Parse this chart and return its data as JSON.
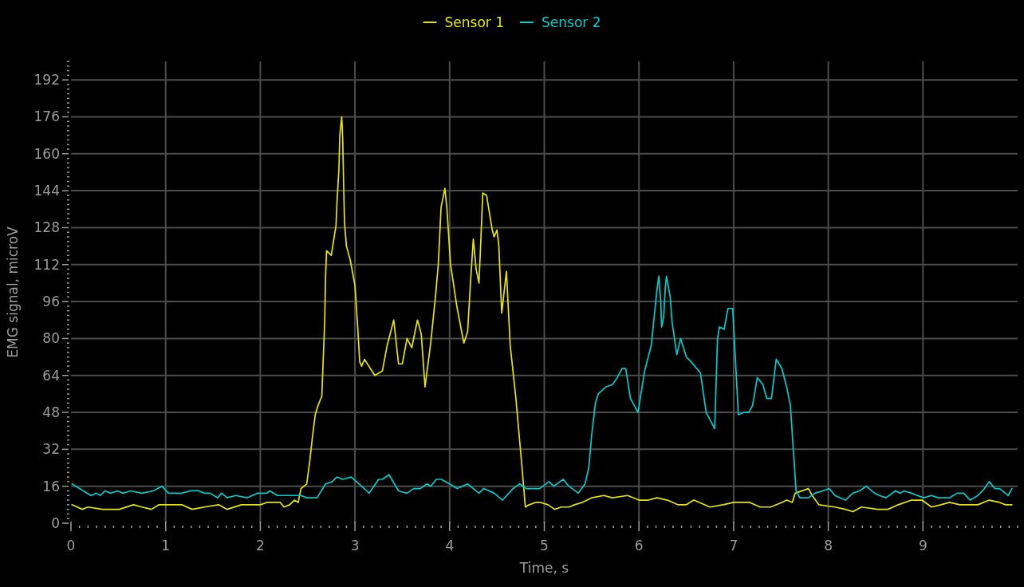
{
  "chart_data": {
    "type": "line",
    "xlabel": "Time, s",
    "ylabel": "EMG signal, microV",
    "legend": "top",
    "grid": true,
    "xlim": [
      0,
      10
    ],
    "ylim": [
      0,
      200
    ],
    "xticks": [
      0,
      {
        "value": 0.09,
        "label": null
      },
      {
        "value": 0.18,
        "label": null
      },
      {
        "value": 0.27,
        "label": null
      },
      {
        "value": 0.36,
        "label": null
      },
      {
        "value": 0.45,
        "label": null
      },
      {
        "value": 0.55,
        "label": null
      },
      {
        "value": 0.64,
        "label": null
      },
      {
        "value": 0.73,
        "label": null
      },
      {
        "value": 0.82,
        "label": null
      },
      {
        "value": 0.91,
        "label": null
      },
      1,
      {
        "value": 1.09,
        "label": null
      },
      {
        "value": 1.18,
        "label": null
      },
      {
        "value": 1.27,
        "label": null
      },
      {
        "value": 1.36,
        "label": null
      },
      {
        "value": 1.45,
        "label": null
      },
      {
        "value": 1.55,
        "label": null
      },
      {
        "value": 1.64,
        "label": null
      },
      {
        "value": 1.73,
        "label": null
      },
      {
        "value": 1.82,
        "label": null
      },
      {
        "value": 1.91,
        "label": null
      },
      2,
      {
        "value": 2.09,
        "label": null
      },
      {
        "value": 2.18,
        "label": null
      },
      {
        "value": 2.27,
        "label": null
      },
      {
        "value": 2.36,
        "label": null
      },
      {
        "value": 2.45,
        "label": null
      },
      {
        "value": 2.55,
        "label": null
      },
      {
        "value": 2.64,
        "label": null
      },
      {
        "value": 2.73,
        "label": null
      },
      {
        "value": 2.82,
        "label": null
      },
      {
        "value": 2.91,
        "label": null
      },
      3,
      {
        "value": 3.09,
        "label": null
      },
      {
        "value": 3.18,
        "label": null
      },
      {
        "value": 3.27,
        "label": null
      },
      {
        "value": 3.36,
        "label": null
      },
      {
        "value": 3.45,
        "label": null
      },
      {
        "value": 3.55,
        "label": null
      },
      {
        "value": 3.64,
        "label": null
      },
      {
        "value": 3.73,
        "label": null
      },
      {
        "value": 3.82,
        "label": null
      },
      {
        "value": 3.91,
        "label": null
      },
      4,
      {
        "value": 4.09,
        "label": null
      },
      {
        "value": 4.18,
        "label": null
      },
      {
        "value": 4.27,
        "label": null
      },
      {
        "value": 4.36,
        "label": null
      },
      {
        "value": 4.45,
        "label": null
      },
      {
        "value": 4.55,
        "label": null
      },
      {
        "value": 4.64,
        "label": null
      },
      {
        "value": 4.73,
        "label": null
      },
      {
        "value": 4.82,
        "label": null
      },
      {
        "value": 4.91,
        "label": null
      },
      5,
      {
        "value": 5.09,
        "label": null
      },
      {
        "value": 5.18,
        "label": null
      },
      {
        "value": 5.27,
        "label": null
      },
      {
        "value": 5.36,
        "label": null
      },
      {
        "value": 5.45,
        "label": null
      },
      {
        "value": 5.55,
        "label": null
      },
      {
        "value": 5.64,
        "label": null
      },
      {
        "value": 5.73,
        "label": null
      },
      {
        "value": 5.82,
        "label": null
      },
      {
        "value": 5.91,
        "label": null
      },
      6,
      {
        "value": 6.09,
        "label": null
      },
      {
        "value": 6.18,
        "label": null
      },
      {
        "value": 6.27,
        "label": null
      },
      {
        "value": 6.36,
        "label": null
      },
      {
        "value": 6.45,
        "label": null
      },
      {
        "value": 6.55,
        "label": null
      },
      {
        "value": 6.64,
        "label": null
      },
      {
        "value": 6.73,
        "label": null
      },
      {
        "value": 6.82,
        "label": null
      },
      {
        "value": 6.91,
        "label": null
      },
      7,
      {
        "value": 7.09,
        "label": null
      },
      {
        "value": 7.18,
        "label": null
      },
      {
        "value": 7.27,
        "label": null
      },
      {
        "value": 7.36,
        "label": null
      },
      {
        "value": 7.45,
        "label": null
      },
      {
        "value": 7.55,
        "label": null
      },
      {
        "value": 7.64,
        "label": null
      },
      {
        "value": 7.73,
        "label": null
      },
      {
        "value": 7.82,
        "label": null
      },
      {
        "value": 7.91,
        "label": null
      },
      8,
      {
        "value": 8.09,
        "label": null
      },
      {
        "value": 8.18,
        "label": null
      },
      {
        "value": 8.27,
        "label": null
      },
      {
        "value": 8.36,
        "label": null
      },
      {
        "value": 8.45,
        "label": null
      },
      {
        "value": 8.55,
        "label": null
      },
      {
        "value": 8.64,
        "label": null
      },
      {
        "value": 8.73,
        "label": null
      },
      {
        "value": 8.82,
        "label": null
      },
      {
        "value": 8.91,
        "label": null
      },
      9,
      {
        "value": 9.09,
        "label": null
      },
      {
        "value": 9.18,
        "label": null
      },
      {
        "value": 9.27,
        "label": null
      },
      {
        "value": 9.36,
        "label": null
      },
      {
        "value": 9.45,
        "label": null
      },
      {
        "value": 9.55,
        "label": null
      },
      {
        "value": 9.64,
        "label": null
      },
      {
        "value": 9.73,
        "label": null
      },
      {
        "value": 9.82,
        "label": null
      },
      {
        "value": 9.91,
        "label": null
      },
      {
        "value": 10,
        "label": null
      }
    ],
    "yticks": [
      0,
      {
        "value": 2,
        "label": null
      },
      {
        "value": 4,
        "label": null
      },
      {
        "value": 6,
        "label": null
      },
      {
        "value": 8,
        "label": null
      },
      {
        "value": 10,
        "label": null
      },
      {
        "value": 12,
        "label": null
      },
      {
        "value": 14,
        "label": null
      },
      16,
      {
        "value": 18,
        "label": null
      },
      {
        "value": 20,
        "label": null
      },
      {
        "value": 22,
        "label": null
      },
      {
        "value": 24,
        "label": null
      },
      {
        "value": 26,
        "label": null
      },
      {
        "value": 28,
        "label": null
      },
      {
        "value": 30,
        "label": null
      },
      32,
      {
        "value": 34,
        "label": null
      },
      {
        "value": 36,
        "label": null
      },
      {
        "value": 38,
        "label": null
      },
      {
        "value": 40,
        "label": null
      },
      {
        "value": 42,
        "label": null
      },
      {
        "value": 44,
        "label": null
      },
      {
        "value": 46,
        "label": null
      },
      48,
      {
        "value": 50,
        "label": null
      },
      {
        "value": 52,
        "label": null
      },
      {
        "value": 54,
        "label": null
      },
      {
        "value": 56,
        "label": null
      },
      {
        "value": 58,
        "label": null
      },
      {
        "value": 60,
        "label": null
      },
      {
        "value": 62,
        "label": null
      },
      64,
      {
        "value": 66,
        "label": null
      },
      {
        "value": 68,
        "label": null
      },
      {
        "value": 70,
        "label": null
      },
      {
        "value": 72,
        "label": null
      },
      {
        "value": 74,
        "label": null
      },
      {
        "value": 76,
        "label": null
      },
      {
        "value": 78,
        "label": null
      },
      80,
      {
        "value": 82,
        "label": null
      },
      {
        "value": 84,
        "label": null
      },
      {
        "value": 86,
        "label": null
      },
      {
        "value": 88,
        "label": null
      },
      {
        "value": 90,
        "label": null
      },
      {
        "value": 92,
        "label": null
      },
      {
        "value": 94,
        "label": null
      },
      96,
      {
        "value": 98,
        "label": null
      },
      {
        "value": 100,
        "label": null
      },
      {
        "value": 102,
        "label": null
      },
      {
        "value": 104,
        "label": null
      },
      {
        "value": 106,
        "label": null
      },
      {
        "value": 108,
        "label": null
      },
      {
        "value": 110,
        "label": null
      },
      112,
      {
        "value": 114,
        "label": null
      },
      {
        "value": 116,
        "label": null
      },
      {
        "value": 118,
        "label": null
      },
      {
        "value": 120,
        "label": null
      },
      {
        "value": 122,
        "label": null
      },
      {
        "value": 124,
        "label": null
      },
      {
        "value": 126,
        "label": null
      },
      128,
      {
        "value": 130,
        "label": null
      },
      {
        "value": 132,
        "label": null
      },
      {
        "value": 134,
        "label": null
      },
      {
        "value": 136,
        "label": null
      },
      {
        "value": 138,
        "label": null
      },
      {
        "value": 140,
        "label": null
      },
      {
        "value": 142,
        "label": null
      },
      144,
      {
        "value": 146,
        "label": null
      },
      {
        "value": 148,
        "label": null
      },
      {
        "value": 150,
        "label": null
      },
      {
        "value": 152,
        "label": null
      },
      {
        "value": 154,
        "label": null
      },
      {
        "value": 156,
        "label": null
      },
      {
        "value": 158,
        "label": null
      },
      160,
      {
        "value": 162,
        "label": null
      },
      {
        "value": 164,
        "label": null
      },
      {
        "value": 166,
        "label": null
      },
      {
        "value": 168,
        "label": null
      },
      {
        "value": 170,
        "label": null
      },
      {
        "value": 172,
        "label": null
      },
      {
        "value": 174,
        "label": null
      },
      176,
      {
        "value": 178,
        "label": null
      },
      {
        "value": 180,
        "label": null
      },
      {
        "value": 182,
        "label": null
      },
      {
        "value": 184,
        "label": null
      },
      {
        "value": 186,
        "label": null
      },
      {
        "value": 188,
        "label": null
      },
      {
        "value": 190,
        "label": null
      },
      192,
      {
        "value": 194,
        "label": null
      },
      {
        "value": 196,
        "label": null
      },
      {
        "value": 198,
        "label": null
      },
      {
        "value": 200,
        "label": null
      }
    ],
    "series": [
      {
        "name": "Sensor 1",
        "color": "#e6e600",
        "x": [
          0.01,
          0.12,
          0.18,
          0.33,
          0.51,
          0.66,
          0.75,
          0.85,
          0.93,
          1.02,
          1.17,
          1.28,
          1.41,
          1.56,
          1.65,
          1.8,
          2.0,
          2.07,
          2.16,
          2.21,
          2.25,
          2.31,
          2.36,
          2.4,
          2.43,
          2.49,
          2.52,
          2.55,
          2.58,
          2.61,
          2.65,
          2.66,
          2.68,
          2.69,
          2.7,
          2.75,
          2.78,
          2.8,
          2.81,
          2.83,
          2.84,
          2.86,
          2.87,
          2.88,
          2.89,
          2.91,
          2.95,
          3.0,
          3.03,
          3.05,
          3.07,
          3.1,
          3.21,
          3.29,
          3.34,
          3.41,
          3.46,
          3.5,
          3.55,
          3.6,
          3.66,
          3.7,
          3.74,
          3.8,
          3.85,
          3.88,
          3.91,
          3.95,
          3.97,
          4.01,
          4.08,
          4.15,
          4.19,
          4.22,
          4.25,
          4.28,
          4.31,
          4.33,
          4.35,
          4.39,
          4.45,
          4.47,
          4.5,
          4.52,
          4.55,
          4.6,
          4.61,
          4.64,
          4.7,
          4.75,
          4.8,
          4.84,
          4.91,
          4.96,
          5.04,
          5.11,
          5.18,
          5.26,
          5.32,
          5.4,
          5.5,
          5.63,
          5.72,
          5.88,
          6.0,
          6.1,
          6.19,
          6.3,
          6.41,
          6.5,
          6.58,
          6.75,
          6.89,
          7.0,
          7.17,
          7.28,
          7.39,
          7.51,
          7.56,
          7.62,
          7.65,
          7.79,
          7.83,
          7.9,
          8.07,
          8.18,
          8.26,
          8.35,
          8.52,
          8.63,
          8.74,
          8.88,
          8.99,
          9.09,
          9.19,
          9.28,
          9.39,
          9.58,
          9.7,
          9.81,
          9.87,
          9.94
        ],
        "values": [
          8,
          6,
          7,
          6,
          6,
          8,
          7,
          6,
          8,
          8,
          8,
          6,
          7,
          8,
          6,
          8,
          8,
          9,
          9,
          9,
          7,
          8,
          10,
          9,
          15,
          17,
          26,
          37,
          47,
          51,
          55,
          66,
          87,
          108,
          118,
          116,
          124,
          129,
          139,
          153,
          168,
          176,
          167,
          147,
          130,
          120,
          114,
          103,
          84,
          70,
          68,
          71,
          64,
          66,
          77,
          88,
          69,
          69,
          80,
          76,
          88,
          82,
          59,
          78,
          98,
          112,
          137,
          145,
          137,
          112,
          93,
          78,
          83,
          104,
          123,
          110,
          104,
          123,
          143,
          142,
          127,
          124,
          127,
          120,
          91,
          109,
          101,
          77,
          54,
          31,
          7,
          8,
          9,
          9,
          8,
          6,
          7,
          7,
          8,
          9,
          11,
          12,
          11,
          12,
          10,
          10,
          11,
          10,
          8,
          8,
          10,
          7,
          8,
          9,
          9,
          7,
          7,
          9,
          10,
          9,
          13,
          15,
          12,
          8,
          7,
          6,
          5,
          7,
          6,
          6,
          8,
          10,
          10,
          7,
          8,
          9,
          8,
          8,
          10,
          9,
          8,
          8
        ]
      },
      {
        "name": "Sensor 2",
        "color": "#00cccc",
        "x": [
          0.01,
          0.09,
          0.21,
          0.27,
          0.31,
          0.36,
          0.42,
          0.49,
          0.55,
          0.63,
          0.75,
          0.87,
          0.96,
          1.03,
          1.17,
          1.26,
          1.35,
          1.41,
          1.47,
          1.55,
          1.59,
          1.65,
          1.74,
          1.86,
          1.97,
          2.07,
          2.1,
          2.18,
          2.25,
          2.3,
          2.34,
          2.43,
          2.49,
          2.6,
          2.69,
          2.76,
          2.81,
          2.87,
          2.96,
          3.07,
          3.15,
          3.25,
          3.29,
          3.36,
          3.46,
          3.55,
          3.62,
          3.69,
          3.76,
          3.8,
          3.86,
          3.91,
          4.0,
          4.08,
          4.19,
          4.31,
          4.36,
          4.47,
          4.56,
          4.67,
          4.74,
          4.81,
          4.95,
          5.05,
          5.1,
          5.2,
          5.26,
          5.36,
          5.43,
          5.47,
          5.5,
          5.54,
          5.57,
          5.65,
          5.72,
          5.77,
          5.82,
          5.86,
          5.91,
          5.99,
          6.06,
          6.13,
          6.16,
          6.19,
          6.21,
          6.23,
          6.24,
          6.26,
          6.28,
          6.29,
          6.33,
          6.35,
          6.4,
          6.44,
          6.5,
          6.55,
          6.65,
          6.71,
          6.8,
          6.83,
          6.85,
          6.9,
          6.94,
          6.99,
          7.02,
          7.05,
          7.11,
          7.16,
          7.2,
          7.25,
          7.31,
          7.35,
          7.4,
          7.45,
          7.51,
          7.56,
          7.6,
          7.63,
          7.66,
          7.7,
          7.79,
          7.86,
          7.94,
          8.01,
          8.07,
          8.18,
          8.26,
          8.33,
          8.4,
          8.49,
          8.54,
          8.61,
          8.71,
          8.76,
          8.8,
          8.88,
          8.94,
          9.01,
          9.09,
          9.16,
          9.28,
          9.36,
          9.43,
          9.5,
          9.58,
          9.65,
          9.7,
          9.76,
          9.81,
          9.9,
          9.94
        ],
        "values": [
          17,
          15,
          12,
          13,
          12,
          14,
          13,
          14,
          13,
          14,
          13,
          14,
          16,
          13,
          13,
          14,
          14,
          13,
          13,
          11,
          13,
          11,
          12,
          11,
          13,
          13,
          14,
          12,
          12,
          12,
          12,
          12,
          11,
          11,
          17,
          18,
          20,
          19,
          20,
          16,
          13,
          19,
          19,
          21,
          14,
          13,
          15,
          15,
          17,
          16,
          19,
          19,
          17,
          15,
          17,
          13,
          15,
          13,
          10,
          15,
          17,
          15,
          15,
          18,
          16,
          19,
          16,
          13,
          17,
          24,
          38,
          52,
          56,
          59,
          60,
          63,
          67,
          67,
          54,
          48,
          66,
          77,
          89,
          101,
          107,
          96,
          85,
          89,
          103,
          107,
          98,
          87,
          73,
          80,
          72,
          70,
          65,
          48,
          41,
          80,
          85,
          84,
          93,
          93,
          70,
          47,
          48,
          48,
          51,
          63,
          60,
          54,
          54,
          71,
          67,
          59,
          51,
          32,
          14,
          11,
          11,
          13,
          14,
          15,
          12,
          10,
          13,
          14,
          16,
          13,
          12,
          11,
          14,
          13,
          14,
          13,
          12,
          11,
          12,
          11,
          11,
          13,
          13,
          10,
          12,
          15,
          18,
          15,
          15,
          12,
          15
        ]
      }
    ]
  }
}
